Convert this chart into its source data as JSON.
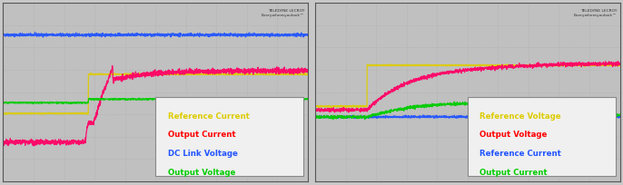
{
  "outer_bg": "#c8c8c8",
  "plot_bg": "#c0c0c0",
  "grid_color": "#aaaaaa",
  "border_color": "#555555",
  "legend_bg": "#f0f0f0",
  "legend_border": "#888888",
  "n_points": 2000,
  "legend1": [
    {
      "label": "Reference Current",
      "color": "#ddcc00"
    },
    {
      "label": "Output Current",
      "color": "#ff0000"
    },
    {
      "label": "DC Link Voltage",
      "color": "#2255ff"
    },
    {
      "label": "Output Voltage",
      "color": "#00cc00"
    }
  ],
  "legend2": [
    {
      "label": "Reference Voltage",
      "color": "#ddcc00"
    },
    {
      "label": "Output Voltage",
      "color": "#ff0000"
    },
    {
      "label": "Reference Current",
      "color": "#2255ff"
    },
    {
      "label": "Output Current",
      "color": "#00cc00"
    }
  ]
}
